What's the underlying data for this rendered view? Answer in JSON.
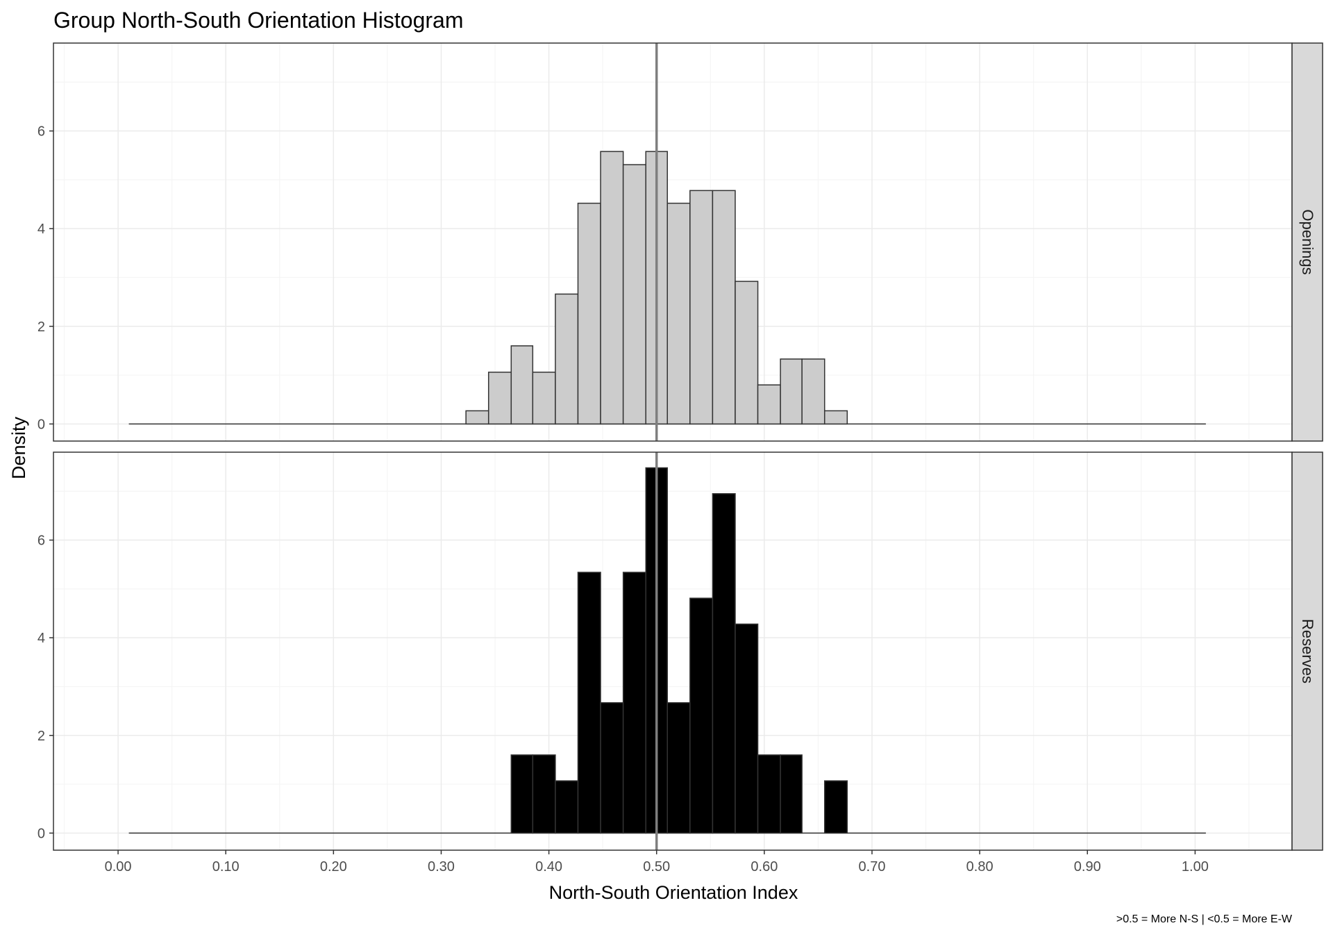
{
  "title": "Group North-South Orientation Histogram",
  "xlabel": "North-South Orientation Index",
  "ylabel": "Density",
  "caption": ">0.5 = More N-S | <0.5 = More E-W",
  "colors": {
    "openings_fill": "#cccccc",
    "reserves_fill": "#000000",
    "bar_outline": "#333333",
    "vline": "#7f7f7f",
    "grid_major": "#ebebeb",
    "grid_minor": "#f5f5f5",
    "strip_fill": "#d9d9d9",
    "panel_border": "#333333"
  },
  "chart_data": {
    "type": "bar",
    "subtype": "faceted-histogram",
    "title": "Group North-South Orientation Histogram",
    "xlabel": "North-South Orientation Index",
    "ylabel": "Density",
    "xlim": [
      -0.06,
      1.09
    ],
    "ylim": [
      -0.35,
      7.8
    ],
    "x_ticks": [
      0.0,
      0.1,
      0.2,
      0.3,
      0.4,
      0.5,
      0.6,
      0.7,
      0.8,
      0.9,
      1.0
    ],
    "x_tick_labels": [
      "0.00",
      "0.10",
      "0.20",
      "0.30",
      "0.40",
      "0.50",
      "0.60",
      "0.70",
      "0.80",
      "0.90",
      "1.00"
    ],
    "y_ticks": [
      0,
      2,
      4,
      6
    ],
    "y_tick_labels": [
      "0",
      "2",
      "4",
      "6"
    ],
    "grid": true,
    "bin_width": 0.0208,
    "baseline_range": [
      0.01,
      1.01
    ],
    "reference_line_x": 0.5,
    "facets": [
      {
        "name": "Openings",
        "fill": "#cccccc",
        "bins": [
          {
            "x0": 0.323,
            "x1": 0.344,
            "density": 0.27
          },
          {
            "x0": 0.344,
            "x1": 0.365,
            "density": 1.06
          },
          {
            "x0": 0.365,
            "x1": 0.385,
            "density": 1.6
          },
          {
            "x0": 0.385,
            "x1": 0.406,
            "density": 1.06
          },
          {
            "x0": 0.406,
            "x1": 0.427,
            "density": 2.66
          },
          {
            "x0": 0.427,
            "x1": 0.448,
            "density": 4.52
          },
          {
            "x0": 0.448,
            "x1": 0.469,
            "density": 5.58
          },
          {
            "x0": 0.469,
            "x1": 0.49,
            "density": 5.31
          },
          {
            "x0": 0.49,
            "x1": 0.51,
            "density": 5.58
          },
          {
            "x0": 0.51,
            "x1": 0.531,
            "density": 4.52
          },
          {
            "x0": 0.531,
            "x1": 0.552,
            "density": 4.78
          },
          {
            "x0": 0.552,
            "x1": 0.573,
            "density": 4.78
          },
          {
            "x0": 0.573,
            "x1": 0.594,
            "density": 2.92
          },
          {
            "x0": 0.594,
            "x1": 0.615,
            "density": 0.8
          },
          {
            "x0": 0.615,
            "x1": 0.635,
            "density": 1.33
          },
          {
            "x0": 0.635,
            "x1": 0.656,
            "density": 1.33
          },
          {
            "x0": 0.656,
            "x1": 0.677,
            "density": 0.27
          }
        ]
      },
      {
        "name": "Reserves",
        "fill": "#000000",
        "bins": [
          {
            "x0": 0.365,
            "x1": 0.385,
            "density": 1.6
          },
          {
            "x0": 0.385,
            "x1": 0.406,
            "density": 1.6
          },
          {
            "x0": 0.406,
            "x1": 0.427,
            "density": 1.07
          },
          {
            "x0": 0.427,
            "x1": 0.448,
            "density": 5.34
          },
          {
            "x0": 0.448,
            "x1": 0.469,
            "density": 2.67
          },
          {
            "x0": 0.469,
            "x1": 0.49,
            "density": 5.34
          },
          {
            "x0": 0.49,
            "x1": 0.51,
            "density": 7.48
          },
          {
            "x0": 0.51,
            "x1": 0.531,
            "density": 2.67
          },
          {
            "x0": 0.531,
            "x1": 0.552,
            "density": 4.81
          },
          {
            "x0": 0.552,
            "x1": 0.573,
            "density": 6.95
          },
          {
            "x0": 0.573,
            "x1": 0.594,
            "density": 4.28
          },
          {
            "x0": 0.594,
            "x1": 0.615,
            "density": 1.6
          },
          {
            "x0": 0.615,
            "x1": 0.635,
            "density": 1.6
          },
          {
            "x0": 0.656,
            "x1": 0.677,
            "density": 1.07
          }
        ]
      }
    ]
  }
}
